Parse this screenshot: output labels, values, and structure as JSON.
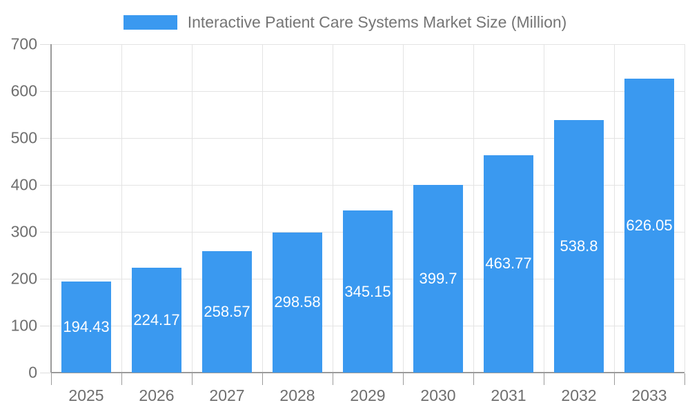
{
  "legend": {
    "label": "Interactive Patient Care Systems Market Size (Million)",
    "swatch_color": "#3a99f0"
  },
  "chart_data": {
    "type": "bar",
    "title": "Interactive Patient Care Systems Market Size (Million)",
    "categories": [
      "2025",
      "2026",
      "2027",
      "2028",
      "2029",
      "2030",
      "2031",
      "2032",
      "2033"
    ],
    "values": [
      194.43,
      224.17,
      258.57,
      298.58,
      345.15,
      399.7,
      463.77,
      538.8,
      626.05
    ],
    "value_labels": [
      "194.43",
      "224.17",
      "258.57",
      "298.58",
      "345.15",
      "399.7",
      "463.77",
      "538.8",
      "626.05"
    ],
    "series": [
      {
        "name": "Interactive Patient Care Systems Market Size (Million)",
        "values": [
          194.43,
          224.17,
          258.57,
          298.58,
          345.15,
          399.7,
          463.77,
          538.8,
          626.05
        ]
      }
    ],
    "xlabel": "",
    "ylabel": "",
    "ylim": [
      0,
      700
    ],
    "yticks": [
      0,
      100,
      200,
      300,
      400,
      500,
      600,
      700
    ],
    "grid": true,
    "legend_position": "top",
    "bar_color": "#3a99f0",
    "value_label_color": "#ffffff"
  },
  "colors": {
    "bar": "#3a99f0",
    "grid": "#e3e3e3",
    "axis": "#9a9a9a",
    "tick_text": "#6e6e6e",
    "title_text": "#757575",
    "background": "#ffffff"
  }
}
